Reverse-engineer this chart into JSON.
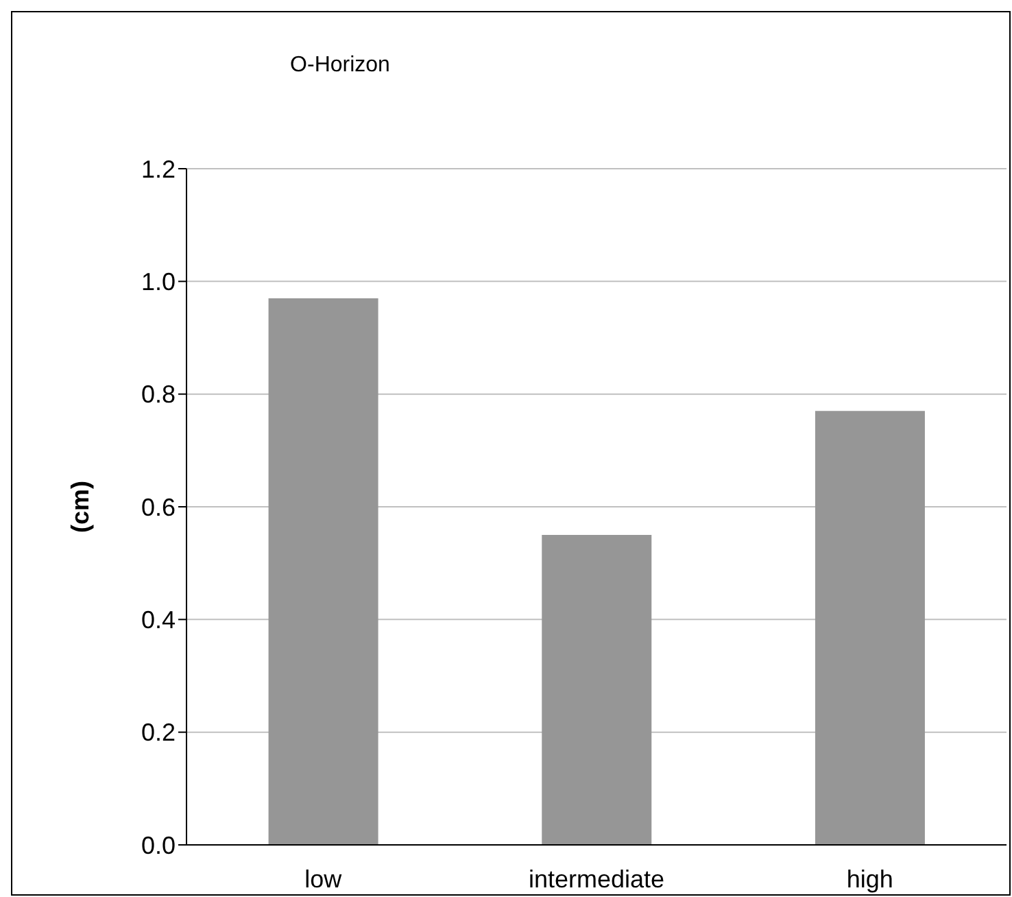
{
  "chart_data": {
    "type": "bar",
    "title": "O-Horizon",
    "ylabel": "(cm)",
    "categories": [
      "low",
      "intermediate",
      "high"
    ],
    "values": [
      0.97,
      0.55,
      0.77
    ],
    "color": "#969696",
    "ylim": [
      0,
      1.2
    ],
    "yticks": [
      {
        "value": 0,
        "label": "0.0"
      },
      {
        "value": 0.2,
        "label": "0.2"
      },
      {
        "value": 0.4,
        "label": "0.4"
      },
      {
        "value": 0.6,
        "label": "0.6"
      },
      {
        "value": 0.8,
        "label": "0.8"
      },
      {
        "value": 1,
        "label": "1.0"
      },
      {
        "value": 1.2,
        "label": "1.2"
      }
    ],
    "grid": "y",
    "legend": false
  }
}
